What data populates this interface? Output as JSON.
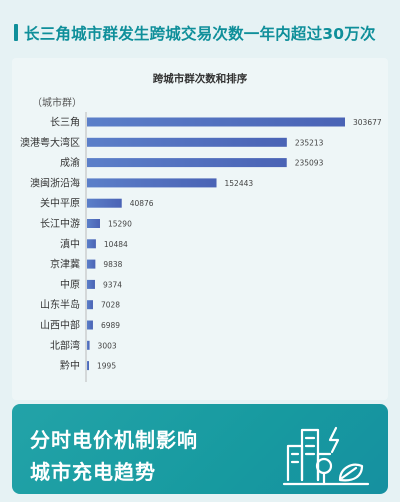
{
  "header": {
    "title": "长三角城市群发生跨城交易次数一年内超过30万次"
  },
  "footer": {
    "line1": "分时电价机制影响",
    "line2": "城市充电趋势",
    "icon": "city-energy-icon"
  },
  "chart_data": {
    "type": "bar",
    "orientation": "horizontal",
    "title": "跨城市群次数和排序",
    "ylabel": "（城市群）",
    "categories": [
      "长三角",
      "澳港粤大湾区",
      "成渝",
      "澳闽浙沿海",
      "关中平原",
      "长江中游",
      "滇中",
      "京津冀",
      "中原",
      "山东半岛",
      "山西中部",
      "北部湾",
      "黔中"
    ],
    "values": [
      303677,
      235213,
      235093,
      152443,
      40876,
      15290,
      10484,
      9838,
      9374,
      7028,
      6989,
      3003,
      1995
    ],
    "xlim": [
      0,
      303677
    ],
    "grid": false,
    "bar_color_start": "#5b7fc9",
    "bar_color_end": "#4a63b5"
  }
}
